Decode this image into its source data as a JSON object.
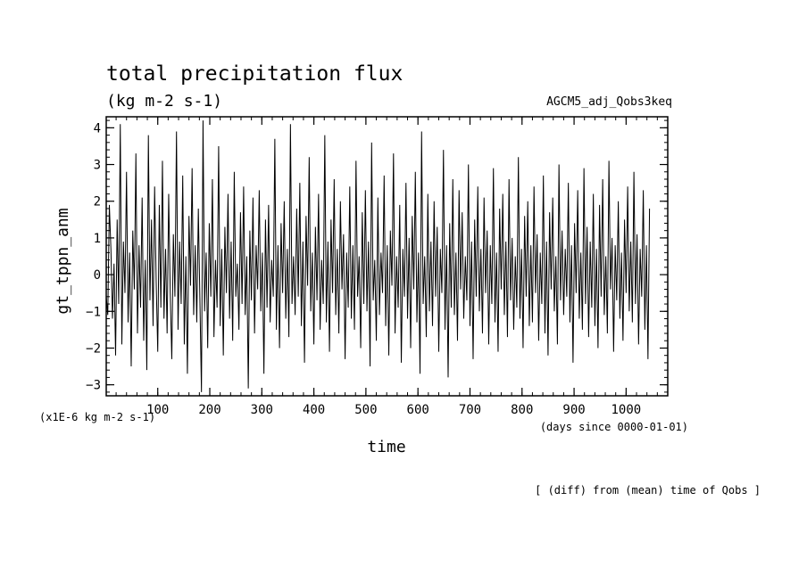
{
  "chart_data": {
    "type": "line",
    "title": "total precipitation flux",
    "subtitle": "(kg m-2 s-1)",
    "run_label": "AGCM5_adj_Qobs3keq",
    "ylabel": "gt_tppn_anm",
    "yunits": "(x1E-6 kg m-2 s-1)",
    "xlabel": "time",
    "xunits": "(days since 0000-01-01)",
    "footnote": "[ (diff) from (mean) time of Qobs ]",
    "xlim": [
      1,
      1080
    ],
    "ylim": [
      -3.3,
      4.3
    ],
    "xticks": [
      100,
      200,
      300,
      400,
      500,
      600,
      700,
      800,
      900,
      1000
    ],
    "yticks": [
      4,
      3,
      2,
      1,
      0,
      -1,
      -2,
      -3
    ],
    "x_tick_labels": [
      "100",
      "200",
      "300",
      "400",
      "500",
      "600",
      "700",
      "800",
      "900",
      "1000"
    ],
    "y_tick_labels": [
      "4",
      "3",
      "2",
      "1",
      "0",
      "−1",
      "−2",
      "−3"
    ],
    "x_minor_step": 20,
    "y_minor_step": 0.2,
    "line_color": "#000000",
    "series": [
      {
        "x_start": 1,
        "x_step": 3,
        "values": [
          -0.6,
          -1.1,
          1.9,
          0.7,
          -1.2,
          0.3,
          -2.2,
          1.5,
          -0.8,
          4.1,
          -1.9,
          0.9,
          -0.5,
          2.8,
          -1.3,
          0.6,
          -2.5,
          1.2,
          -0.4,
          3.3,
          -1.6,
          0.8,
          -0.9,
          2.1,
          -1.8,
          0.4,
          -2.6,
          3.8,
          -0.7,
          1.5,
          -1.4,
          2.4,
          -0.2,
          -2.1,
          1.9,
          -0.9,
          3.1,
          -1.2,
          0.7,
          -1.6,
          2.2,
          -0.5,
          -2.3,
          1.1,
          -0.6,
          3.9,
          -1.5,
          0.9,
          -0.8,
          2.7,
          -1.9,
          0.5,
          -2.7,
          1.6,
          -0.3,
          2.9,
          -1.1,
          0.8,
          -1.3,
          1.8,
          -0.7,
          -3.2,
          4.2,
          -1.0,
          0.6,
          -2.0,
          1.4,
          -0.6,
          2.6,
          -1.7,
          0.4,
          -0.9,
          3.5,
          -1.4,
          0.7,
          -2.2,
          1.3,
          -0.5,
          2.2,
          -1.2,
          0.9,
          -1.8,
          2.8,
          -0.6,
          0.3,
          -1.5,
          1.7,
          -0.8,
          2.4,
          -1.1,
          0.5,
          -3.1,
          1.2,
          -0.7,
          2.1,
          -1.6,
          0.8,
          -0.4,
          2.3,
          -1.0,
          0.6,
          -2.7,
          1.5,
          -0.9,
          1.9,
          -1.3,
          0.4,
          -0.6,
          3.7,
          -1.5,
          0.8,
          -2.0,
          1.4,
          -0.5,
          2.0,
          -1.2,
          0.7,
          -1.7,
          4.1,
          -0.8,
          0.5,
          -1.1,
          1.8,
          -0.6,
          2.5,
          -1.4,
          0.9,
          -2.4,
          1.6,
          -0.3,
          3.2,
          -1.0,
          0.6,
          -1.9,
          1.3,
          -0.7,
          2.2,
          -1.5,
          0.4,
          -0.8,
          3.8,
          -1.3,
          0.9,
          -2.1,
          1.5,
          -0.5,
          2.6,
          -1.1,
          0.7,
          -1.6,
          2.0,
          -0.4,
          1.1,
          -2.3,
          0.6,
          -0.9,
          2.4,
          -1.2,
          0.8,
          -1.5,
          3.1,
          -0.6,
          0.5,
          -2.0,
          1.7,
          -0.8,
          2.3,
          -1.0,
          0.9,
          -2.5,
          3.6,
          -0.7,
          0.4,
          -1.8,
          2.1,
          -1.1,
          0.6,
          -0.5,
          2.7,
          -1.4,
          0.8,
          -2.2,
          1.2,
          -0.3,
          3.3,
          -1.6,
          0.5,
          -0.9,
          1.9,
          -2.4,
          0.7,
          -0.6,
          2.5,
          -1.2,
          1.0,
          -2.0,
          1.6,
          -0.4,
          2.8,
          -1.3,
          0.6,
          -2.7,
          3.9,
          -0.8,
          0.5,
          -1.7,
          2.2,
          -1.0,
          0.9,
          -1.4,
          2.0,
          -0.6,
          1.3,
          -2.1,
          0.7,
          -0.5,
          3.4,
          -1.5,
          0.8,
          -2.8,
          1.4,
          -0.9,
          2.6,
          -1.1,
          0.6,
          -1.8,
          2.3,
          -0.4,
          1.7,
          -1.2,
          0.5,
          -0.7,
          3.0,
          -1.4,
          0.9,
          -2.3,
          1.5,
          -0.6,
          2.4,
          -1.0,
          0.7,
          -1.6,
          2.1,
          -0.5,
          1.2,
          -1.9,
          0.8,
          -0.8,
          2.9,
          -1.3,
          0.6,
          -2.1,
          1.8,
          -0.4,
          2.2,
          -1.1,
          0.9,
          -1.7,
          2.6,
          -0.7,
          1.0,
          -1.5,
          0.5,
          -0.9,
          3.2,
          -1.2,
          0.7,
          -2.0,
          1.6,
          -0.6,
          2.0,
          -1.4,
          0.8,
          -1.3,
          2.4,
          -0.5,
          1.1,
          -1.8,
          0.6,
          -0.8,
          2.7,
          -1.6,
          0.9,
          -2.2,
          1.7,
          -0.4,
          2.1,
          -1.0,
          0.5,
          -1.9,
          3.0,
          -0.7,
          1.2,
          -1.1,
          0.7,
          -0.6,
          2.5,
          -1.3,
          0.8,
          -2.4,
          1.4,
          -0.5,
          2.3,
          -1.2,
          0.6,
          -1.5,
          2.9,
          -0.8,
          1.3,
          -1.7,
          0.9,
          -0.9,
          2.2,
          -1.4,
          0.7,
          -2.0,
          1.9,
          -0.6,
          2.6,
          -1.1,
          0.5,
          -1.6,
          3.1,
          -0.4,
          1.0,
          -2.1,
          0.8,
          -0.7,
          2.0,
          -1.2,
          0.6,
          -1.8,
          1.5,
          -0.5,
          2.4,
          -1.0,
          0.9,
          -1.3,
          2.8,
          -0.8,
          1.1,
          -1.9,
          0.7,
          -0.6,
          2.3,
          -1.5,
          0.8,
          -2.3,
          1.8
        ]
      }
    ]
  }
}
